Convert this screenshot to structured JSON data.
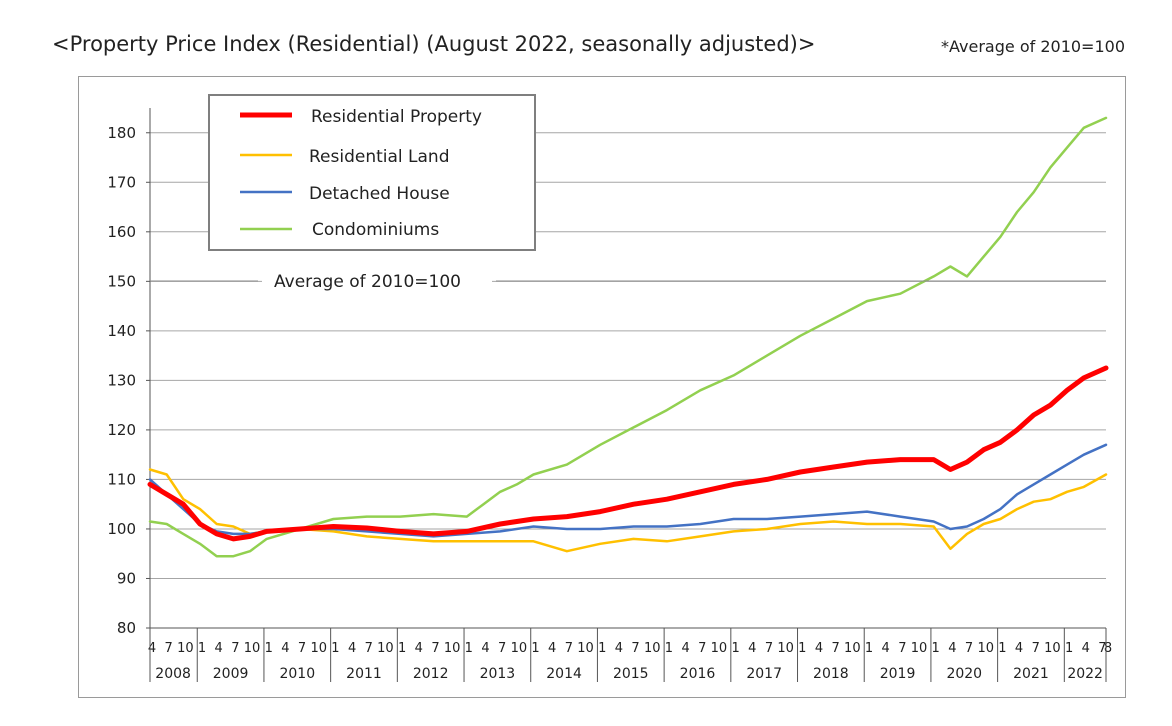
{
  "page": {
    "title": "<Property Price Index (Residential) (August 2022, seasonally adjusted)>",
    "note": "*Average of 2010=100"
  },
  "chart_data": {
    "type": "line",
    "title": "<Property Price Index (Residential) (August 2022, seasonally adjusted)>",
    "annotation": "Average of 2010=100",
    "ylim": [
      80,
      185
    ],
    "yticks": [
      80,
      90,
      100,
      110,
      120,
      130,
      140,
      150,
      160,
      170,
      180
    ],
    "grid": true,
    "legend_position": "top-left",
    "x_start": "2008-04",
    "x_end": "2022-08",
    "month_tick_labels": [
      "1",
      "4",
      "7",
      "10"
    ],
    "years": [
      "2008",
      "2009",
      "2010",
      "2011",
      "2012",
      "2013",
      "2014",
      "2015",
      "2016",
      "2017",
      "2018",
      "2019",
      "2020",
      "2021",
      "2022"
    ],
    "last_month_label": "8",
    "series": [
      {
        "name": "Residential Property",
        "color": "#ff0000",
        "width": 5,
        "points": [
          [
            "2008-04",
            109
          ],
          [
            "2008-07",
            107
          ],
          [
            "2008-10",
            105
          ],
          [
            "2009-01",
            101
          ],
          [
            "2009-04",
            99
          ],
          [
            "2009-07",
            98
          ],
          [
            "2009-10",
            98.5
          ],
          [
            "2010-01",
            99.5
          ],
          [
            "2010-07",
            100
          ],
          [
            "2011-01",
            100.5
          ],
          [
            "2011-07",
            100.2
          ],
          [
            "2012-01",
            99.5
          ],
          [
            "2012-07",
            99
          ],
          [
            "2013-01",
            99.5
          ],
          [
            "2013-07",
            101
          ],
          [
            "2014-01",
            102
          ],
          [
            "2014-07",
            102.5
          ],
          [
            "2015-01",
            103.5
          ],
          [
            "2015-07",
            105
          ],
          [
            "2016-01",
            106
          ],
          [
            "2016-07",
            107.5
          ],
          [
            "2017-01",
            109
          ],
          [
            "2017-07",
            110
          ],
          [
            "2018-01",
            111.5
          ],
          [
            "2018-07",
            112.5
          ],
          [
            "2019-01",
            113.5
          ],
          [
            "2019-07",
            114
          ],
          [
            "2020-01",
            114
          ],
          [
            "2020-04",
            112
          ],
          [
            "2020-07",
            113.5
          ],
          [
            "2020-10",
            116
          ],
          [
            "2021-01",
            117.5
          ],
          [
            "2021-04",
            120
          ],
          [
            "2021-07",
            123
          ],
          [
            "2021-10",
            125
          ],
          [
            "2022-01",
            128
          ],
          [
            "2022-04",
            130.5
          ],
          [
            "2022-08",
            132.5
          ]
        ]
      },
      {
        "name": "Residential Land",
        "color": "#ffc000",
        "width": 2.5,
        "points": [
          [
            "2008-04",
            112
          ],
          [
            "2008-07",
            111
          ],
          [
            "2008-10",
            106
          ],
          [
            "2009-01",
            104
          ],
          [
            "2009-04",
            101
          ],
          [
            "2009-07",
            100.5
          ],
          [
            "2009-10",
            99
          ],
          [
            "2010-01",
            99.5
          ],
          [
            "2010-07",
            100
          ],
          [
            "2011-01",
            99.5
          ],
          [
            "2011-07",
            98.5
          ],
          [
            "2012-01",
            98
          ],
          [
            "2012-07",
            97.5
          ],
          [
            "2013-01",
            97.5
          ],
          [
            "2013-07",
            97.5
          ],
          [
            "2014-01",
            97.5
          ],
          [
            "2014-07",
            95.5
          ],
          [
            "2015-01",
            97
          ],
          [
            "2015-07",
            98
          ],
          [
            "2016-01",
            97.5
          ],
          [
            "2016-07",
            98.5
          ],
          [
            "2017-01",
            99.5
          ],
          [
            "2017-07",
            100
          ],
          [
            "2018-01",
            101
          ],
          [
            "2018-07",
            101.5
          ],
          [
            "2019-01",
            101
          ],
          [
            "2019-07",
            101
          ],
          [
            "2020-01",
            100.5
          ],
          [
            "2020-04",
            96
          ],
          [
            "2020-07",
            99
          ],
          [
            "2020-10",
            101
          ],
          [
            "2021-01",
            102
          ],
          [
            "2021-04",
            104
          ],
          [
            "2021-07",
            105.5
          ],
          [
            "2021-10",
            106
          ],
          [
            "2022-01",
            107.5
          ],
          [
            "2022-04",
            108.5
          ],
          [
            "2022-08",
            111
          ]
        ]
      },
      {
        "name": "Detached House",
        "color": "#4472c4",
        "width": 2.5,
        "points": [
          [
            "2008-04",
            110
          ],
          [
            "2008-07",
            107
          ],
          [
            "2008-10",
            104
          ],
          [
            "2009-01",
            101
          ],
          [
            "2009-04",
            99.5
          ],
          [
            "2009-07",
            99
          ],
          [
            "2009-10",
            99
          ],
          [
            "2010-01",
            99.5
          ],
          [
            "2010-07",
            100
          ],
          [
            "2011-01",
            100
          ],
          [
            "2011-07",
            99.5
          ],
          [
            "2012-01",
            99
          ],
          [
            "2012-07",
            98.5
          ],
          [
            "2013-01",
            99
          ],
          [
            "2013-07",
            99.5
          ],
          [
            "2014-01",
            100.5
          ],
          [
            "2014-07",
            100
          ],
          [
            "2015-01",
            100
          ],
          [
            "2015-07",
            100.5
          ],
          [
            "2016-01",
            100.5
          ],
          [
            "2016-07",
            101
          ],
          [
            "2017-01",
            102
          ],
          [
            "2017-07",
            102
          ],
          [
            "2018-01",
            102.5
          ],
          [
            "2018-07",
            103
          ],
          [
            "2019-01",
            103.5
          ],
          [
            "2019-07",
            102.5
          ],
          [
            "2020-01",
            101.5
          ],
          [
            "2020-04",
            100
          ],
          [
            "2020-07",
            100.5
          ],
          [
            "2020-10",
            102
          ],
          [
            "2021-01",
            104
          ],
          [
            "2021-04",
            107
          ],
          [
            "2021-07",
            109
          ],
          [
            "2021-10",
            111
          ],
          [
            "2022-01",
            113
          ],
          [
            "2022-04",
            115
          ],
          [
            "2022-08",
            117
          ]
        ]
      },
      {
        "name": "Condominiums",
        "color": "#92d050",
        "width": 2.5,
        "points": [
          [
            "2008-04",
            101.5
          ],
          [
            "2008-07",
            101
          ],
          [
            "2008-10",
            99
          ],
          [
            "2009-01",
            97
          ],
          [
            "2009-04",
            94.5
          ],
          [
            "2009-07",
            94.5
          ],
          [
            "2009-10",
            95.5
          ],
          [
            "2010-01",
            98
          ],
          [
            "2010-07",
            100
          ],
          [
            "2011-01",
            102
          ],
          [
            "2011-07",
            102.5
          ],
          [
            "2012-01",
            102.5
          ],
          [
            "2012-07",
            103
          ],
          [
            "2013-01",
            102.5
          ],
          [
            "2013-04",
            105
          ],
          [
            "2013-07",
            107.5
          ],
          [
            "2013-10",
            109
          ],
          [
            "2014-01",
            111
          ],
          [
            "2014-07",
            113
          ],
          [
            "2015-01",
            117
          ],
          [
            "2015-07",
            120.5
          ],
          [
            "2016-01",
            124
          ],
          [
            "2016-07",
            128
          ],
          [
            "2017-01",
            131
          ],
          [
            "2017-07",
            135
          ],
          [
            "2018-01",
            139
          ],
          [
            "2018-07",
            142.5
          ],
          [
            "2019-01",
            146
          ],
          [
            "2019-07",
            147.5
          ],
          [
            "2020-01",
            151
          ],
          [
            "2020-04",
            153
          ],
          [
            "2020-07",
            151
          ],
          [
            "2020-10",
            155
          ],
          [
            "2021-01",
            159
          ],
          [
            "2021-04",
            164
          ],
          [
            "2021-07",
            168
          ],
          [
            "2021-10",
            173
          ],
          [
            "2022-01",
            177
          ],
          [
            "2022-04",
            181
          ],
          [
            "2022-08",
            183
          ]
        ]
      }
    ]
  }
}
